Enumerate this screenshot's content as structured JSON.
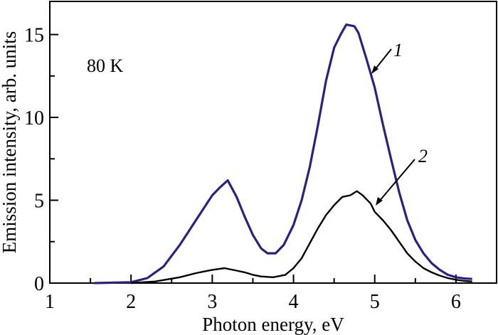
{
  "chart_data": {
    "type": "line",
    "xlabel": "Photon energy, eV",
    "ylabel": "Emission intensity, arb. units",
    "xlim": [
      1,
      6.5
    ],
    "ylim": [
      0,
      17
    ],
    "xticks": [
      1,
      2,
      3,
      4,
      5,
      6
    ],
    "xtick_labels": [
      "1",
      "2",
      "3",
      "4",
      "5",
      "6"
    ],
    "yticks": [
      0,
      5,
      10,
      15
    ],
    "ytick_labels": [
      "0",
      "5",
      "10",
      "15"
    ],
    "grid": false,
    "annotation": "80 K",
    "series": [
      {
        "name": "1",
        "color": "#2b2183",
        "x": [
          1.55,
          2.0,
          2.2,
          2.4,
          2.6,
          2.8,
          3.0,
          3.1,
          3.19,
          3.3,
          3.4,
          3.5,
          3.6,
          3.68,
          3.78,
          3.88,
          4.0,
          4.1,
          4.2,
          4.3,
          4.4,
          4.5,
          4.58,
          4.65,
          4.75,
          4.8,
          4.9,
          5.0,
          5.1,
          5.2,
          5.3,
          5.4,
          5.5,
          5.6,
          5.7,
          5.8,
          5.9,
          6.0,
          6.1,
          6.2
        ],
        "y": [
          0,
          0.05,
          0.3,
          1.0,
          2.3,
          3.8,
          5.3,
          5.8,
          6.2,
          5.2,
          4.0,
          2.9,
          2.1,
          1.8,
          1.8,
          2.3,
          3.5,
          5.0,
          7.0,
          9.5,
          12.2,
          14.2,
          15.0,
          15.6,
          15.5,
          15.1,
          13.5,
          11.8,
          9.6,
          7.5,
          5.5,
          3.8,
          2.6,
          1.8,
          1.2,
          0.8,
          0.5,
          0.35,
          0.28,
          0.25
        ]
      },
      {
        "name": "2",
        "color": "#000000",
        "x": [
          2.0,
          2.3,
          2.6,
          2.8,
          3.0,
          3.15,
          3.3,
          3.4,
          3.5,
          3.6,
          3.75,
          3.9,
          4.0,
          4.1,
          4.2,
          4.3,
          4.4,
          4.5,
          4.6,
          4.7,
          4.78,
          4.85,
          4.95,
          5.0,
          5.1,
          5.2,
          5.3,
          5.4,
          5.5,
          5.6,
          5.7,
          5.8,
          5.9,
          6.0,
          6.1,
          6.2
        ],
        "y": [
          0,
          0.1,
          0.35,
          0.6,
          0.8,
          0.9,
          0.75,
          0.65,
          0.5,
          0.4,
          0.35,
          0.5,
          0.9,
          1.5,
          2.4,
          3.3,
          4.1,
          4.7,
          5.2,
          5.3,
          5.55,
          5.3,
          4.8,
          4.3,
          3.8,
          3.2,
          2.5,
          1.8,
          1.3,
          0.9,
          0.65,
          0.45,
          0.3,
          0.2,
          0.13,
          0.1
        ]
      }
    ]
  }
}
